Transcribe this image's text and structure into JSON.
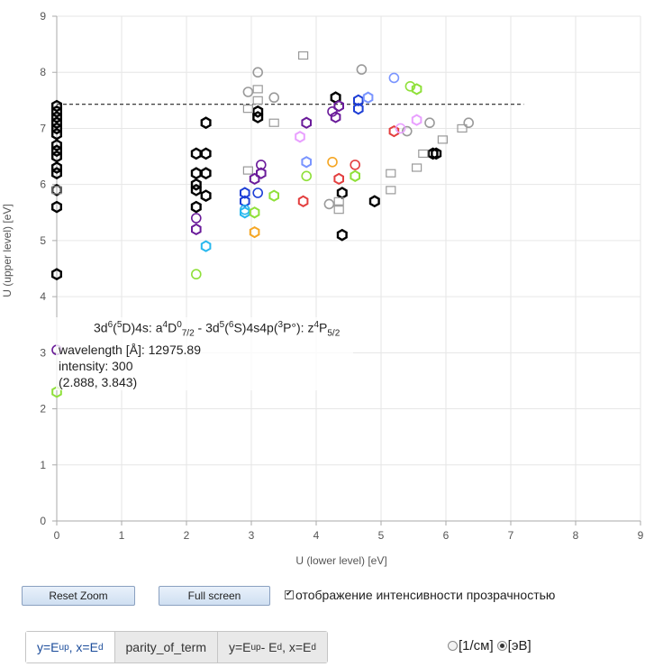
{
  "chart_data": {
    "type": "scatter",
    "xlabel": "U (lower level) [eV]",
    "ylabel": "U (upper level) [eV]",
    "xlim": [
      0,
      9
    ],
    "ylim": [
      0,
      9
    ],
    "xticks": [
      "0",
      "1",
      "2",
      "3",
      "4",
      "5",
      "6",
      "7",
      "8",
      "9"
    ],
    "yticks": [
      "0",
      "1",
      "2",
      "3",
      "4",
      "5",
      "6",
      "7",
      "8",
      "9"
    ],
    "grid": true,
    "reference_line_y": 7.43,
    "reference_line_x": [
      0,
      7.2
    ],
    "point_series": [
      {
        "color": "#000000",
        "points": [
          [
            0,
            7.4
          ],
          [
            0,
            7.3
          ],
          [
            0,
            7.2
          ],
          [
            0,
            7.1
          ],
          [
            0,
            7.0
          ],
          [
            0,
            6.9
          ],
          [
            0,
            6.7
          ],
          [
            0,
            6.6
          ],
          [
            0,
            6.5
          ],
          [
            0,
            6.3
          ],
          [
            0,
            6.2
          ],
          [
            0,
            5.9
          ],
          [
            0,
            5.6
          ],
          [
            0,
            4.4
          ],
          [
            2.15,
            6.55
          ],
          [
            2.15,
            6.2
          ],
          [
            2.15,
            6.0
          ],
          [
            2.15,
            5.9
          ],
          [
            2.15,
            5.6
          ],
          [
            2.3,
            7.1
          ],
          [
            2.3,
            6.55
          ],
          [
            2.3,
            6.2
          ],
          [
            2.3,
            5.8
          ],
          [
            3.1,
            7.2
          ],
          [
            3.1,
            7.3
          ],
          [
            4.3,
            7.55
          ],
          [
            4.4,
            5.85
          ],
          [
            4.4,
            5.1
          ],
          [
            4.9,
            5.7
          ],
          [
            5.8,
            6.55
          ],
          [
            5.85,
            6.55
          ]
        ]
      },
      {
        "color": "#9a9a9a",
        "points": [
          [
            0,
            5.9
          ],
          [
            2.95,
            7.65
          ],
          [
            2.95,
            7.35
          ],
          [
            2.95,
            6.25
          ],
          [
            3.1,
            8.0
          ],
          [
            3.1,
            7.7
          ],
          [
            3.1,
            7.5
          ],
          [
            3.35,
            7.55
          ],
          [
            3.35,
            7.1
          ],
          [
            3.8,
            8.3
          ],
          [
            4.2,
            5.65
          ],
          [
            4.35,
            5.7
          ],
          [
            4.35,
            5.55
          ],
          [
            4.7,
            8.05
          ],
          [
            5.15,
            6.2
          ],
          [
            5.15,
            5.9
          ],
          [
            5.4,
            6.95
          ],
          [
            5.55,
            6.3
          ],
          [
            5.65,
            6.55
          ],
          [
            5.75,
            7.1
          ],
          [
            5.95,
            6.8
          ],
          [
            6.25,
            7.0
          ],
          [
            6.35,
            7.1
          ]
        ]
      },
      {
        "color": "#6a1b9a",
        "points": [
          [
            2.15,
            5.4
          ],
          [
            2.15,
            5.2
          ],
          [
            3.05,
            6.1
          ],
          [
            3.15,
            6.35
          ],
          [
            3.15,
            6.2
          ],
          [
            3.85,
            7.1
          ],
          [
            4.25,
            7.3
          ],
          [
            4.35,
            7.4
          ],
          [
            4.3,
            7.2
          ],
          [
            0,
            3.05
          ]
        ]
      },
      {
        "color": "#1e3fd6",
        "points": [
          [
            2.9,
            5.85
          ],
          [
            2.9,
            5.7
          ],
          [
            3.1,
            5.85
          ],
          [
            4.65,
            7.5
          ],
          [
            4.65,
            7.35
          ]
        ]
      },
      {
        "color": "#28b8ee",
        "points": [
          [
            2.3,
            4.9
          ],
          [
            2.9,
            5.55
          ],
          [
            2.9,
            5.5
          ]
        ]
      },
      {
        "color": "#8fe03a",
        "points": [
          [
            2.15,
            4.4
          ],
          [
            3.05,
            5.5
          ],
          [
            3.35,
            5.8
          ],
          [
            3.85,
            6.15
          ],
          [
            4.6,
            6.15
          ],
          [
            5.55,
            7.7
          ],
          [
            5.45,
            7.75
          ],
          [
            0,
            2.3
          ]
        ]
      },
      {
        "color": "#e33f3f",
        "points": [
          [
            3.8,
            5.7
          ],
          [
            4.35,
            6.1
          ],
          [
            4.6,
            6.35
          ],
          [
            5.2,
            6.95
          ]
        ]
      },
      {
        "color": "#f5a623",
        "points": [
          [
            3.05,
            5.15
          ],
          [
            4.25,
            6.4
          ]
        ]
      },
      {
        "color": "#7a95ff",
        "points": [
          [
            5.2,
            7.9
          ],
          [
            4.8,
            7.55
          ],
          [
            3.85,
            6.4
          ]
        ]
      },
      {
        "color": "#e9a0ff",
        "points": [
          [
            3.75,
            6.85
          ],
          [
            5.55,
            7.15
          ],
          [
            5.3,
            7.0
          ]
        ]
      }
    ]
  },
  "tooltip": {
    "config_lower": "3d",
    "config_lower_sup": "6",
    "config_lower_paren_sup": "5",
    "config_lower_rest": "D)4s: a",
    "term_lower_sup": "4",
    "term_lower": "D",
    "term_lower_sup2": "0",
    "term_lower_sub": "7/2",
    "separator": " - 3d",
    "config_upper_sup": "5",
    "config_upper_paren_sup": "6",
    "config_upper_rest": "S)4s4p(",
    "config_upper_paren2_sup": "3",
    "config_upper_rest2": "P°): z",
    "term_upper_sup": "4",
    "term_upper": "P",
    "term_upper_sub": "5/2",
    "wavelength": "wavelength [Å]: 12975.89",
    "intensity": "intensity: 300",
    "coords": "(2.888, 3.843)"
  },
  "controls": {
    "reset_zoom": "Reset Zoom",
    "full_screen": "Full screen",
    "opacity_label": "отображение интенсивности прозрачностью"
  },
  "tabs": [
    {
      "base": "y=E",
      "sub1": "up",
      "mid": ", x=E",
      "sub2": "d",
      "tail": ""
    },
    {
      "base": "parity_of_term"
    },
    {
      "base": "y=E",
      "sub1": "up",
      "mid": " - E",
      "sub2": "d",
      "tail": ", x=E",
      "sub3": "d"
    }
  ],
  "units": {
    "option1": "[1/см]",
    "option2": "[эВ]",
    "selected": "[эВ]"
  }
}
